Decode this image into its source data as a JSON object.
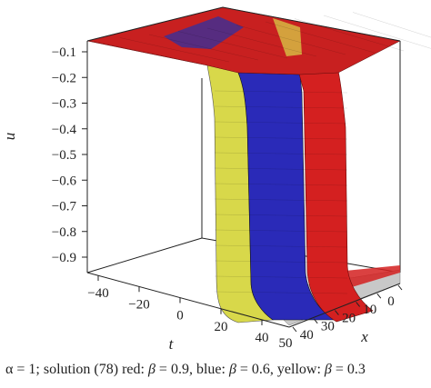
{
  "chart_data": {
    "type": "surface3d",
    "zlabel": "u",
    "tlabel": "t",
    "xlabel": "x",
    "zticks": [
      "−0.1",
      "−0.2",
      "−0.3",
      "−0.4",
      "−0.5",
      "−0.6",
      "−0.7",
      "−0.8",
      "−0.9"
    ],
    "zlim": [
      -0.95,
      -0.1
    ],
    "tticks": [
      "−40",
      "−20",
      "0",
      "20",
      "40"
    ],
    "tlim": [
      -50,
      50
    ],
    "xticks": [
      "50",
      "40",
      "30",
      "20",
      "10",
      "0"
    ],
    "xlim": [
      0,
      50
    ],
    "series": [
      {
        "color": "#d42020",
        "beta": 0.9
      },
      {
        "color": "#2a2ab8",
        "beta": 0.6
      },
      {
        "color": "#d8d84a",
        "beta": 0.3
      }
    ]
  },
  "caption": {
    "alpha": "α = 1; solution (78) red: ",
    "beta1": "β",
    "red_val": " = 0.9, blue: ",
    "beta2": "β",
    "blue_val": " = 0.6, yellow: ",
    "beta3": "β",
    "yellow_val": " = 0.3"
  }
}
